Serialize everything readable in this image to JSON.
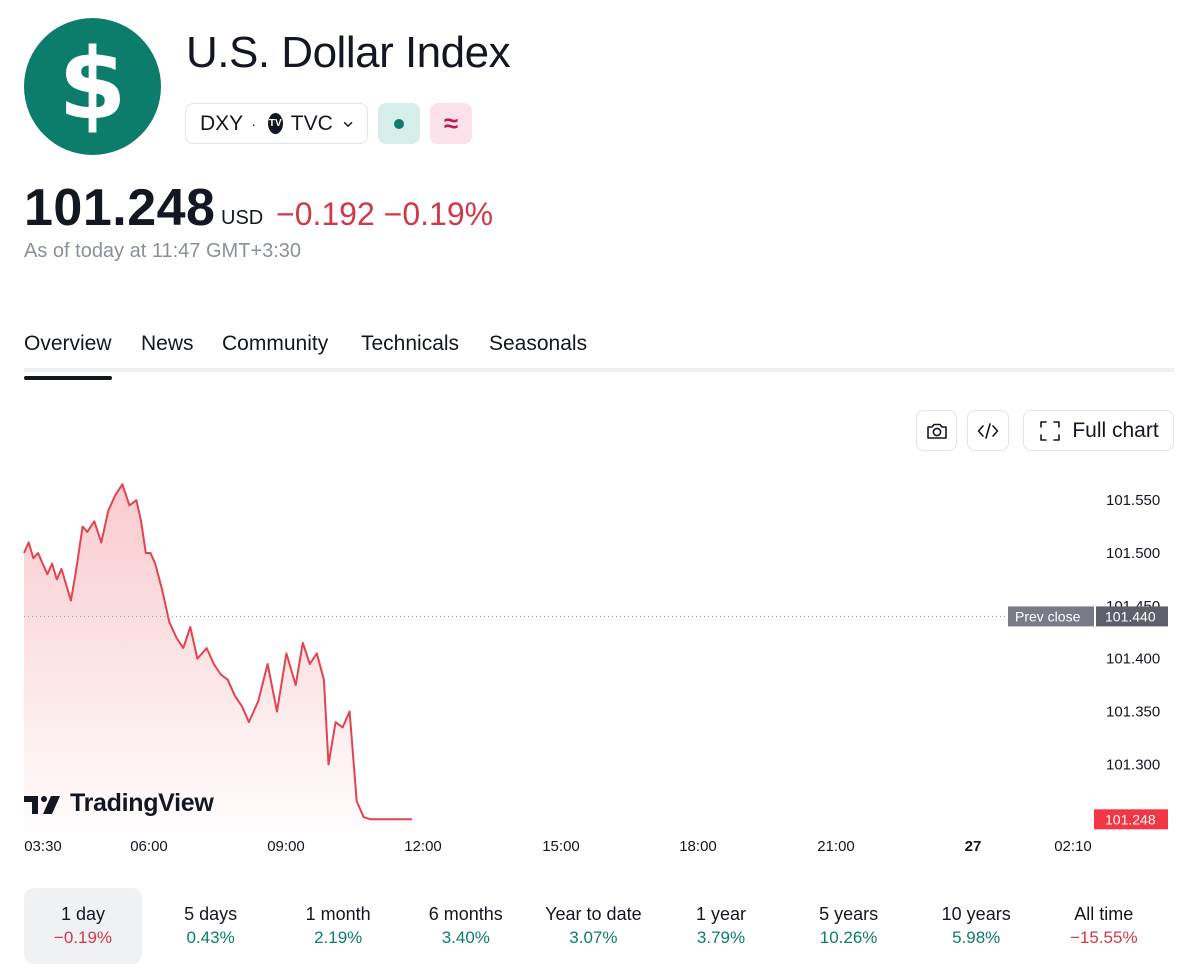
{
  "header": {
    "logo_symbol": "$",
    "title": "U.S. Dollar Index",
    "ticker": "DXY",
    "separator": "·",
    "exchange": "TVC",
    "tv_badge": "TV",
    "delay_symbol": "≈"
  },
  "quote": {
    "price": "101.248",
    "currency": "USD",
    "change": "−0.192 −0.19%",
    "as_of": "As of today at 11:47 GMT+3:30"
  },
  "tabs": [
    {
      "label": "Overview",
      "active": true
    },
    {
      "label": "News"
    },
    {
      "label": "Community"
    },
    {
      "label": "Technicals"
    },
    {
      "label": "Seasonals"
    }
  ],
  "toolbar": {
    "full_chart_label": "Full chart"
  },
  "chart_data": {
    "type": "area",
    "x_tick_labels": [
      "03:30",
      "06:00",
      "09:00",
      "12:00",
      "15:00",
      "18:00",
      "21:00",
      "27",
      "02:10"
    ],
    "y_tick_labels": [
      "101.550",
      "101.500",
      "101.450",
      "101.400",
      "101.350",
      "101.300"
    ],
    "ylim": [
      101.236,
      101.588
    ],
    "x_range_hours": [
      3.5,
      26.1667
    ],
    "prev_close": {
      "label": "Prev close",
      "value": 101.44,
      "display": "101.440"
    },
    "last": {
      "value": 101.248,
      "display": "101.248"
    },
    "series": [
      {
        "x": [
          3.5,
          3.6,
          3.7,
          3.8,
          3.9,
          4.0,
          4.1,
          4.2,
          4.3,
          4.4,
          4.5,
          4.6,
          4.75,
          4.85,
          5.0,
          5.15,
          5.3,
          5.45,
          5.6,
          5.75,
          5.9,
          6.0,
          6.1,
          6.2,
          6.3,
          6.45,
          6.6,
          6.75,
          6.9,
          7.05,
          7.2,
          7.4,
          7.55,
          7.7,
          7.85,
          8.0,
          8.15,
          8.3,
          8.5,
          8.7,
          8.9,
          9.1,
          9.3,
          9.45,
          9.6,
          9.75,
          9.9,
          10.0,
          10.15,
          10.3,
          10.45,
          10.6,
          10.75,
          10.9,
          11.05,
          11.2,
          11.35,
          11.45,
          11.55,
          11.6,
          11.7,
          11.78
        ],
        "y": [
          101.5,
          101.51,
          101.495,
          101.5,
          101.49,
          101.48,
          101.49,
          101.475,
          101.485,
          101.47,
          101.455,
          101.48,
          101.525,
          101.52,
          101.53,
          101.51,
          101.54,
          101.555,
          101.565,
          101.545,
          101.55,
          101.53,
          101.5,
          101.5,
          101.49,
          101.465,
          101.435,
          101.42,
          101.41,
          101.43,
          101.4,
          101.41,
          101.395,
          101.385,
          101.38,
          101.365,
          101.355,
          101.34,
          101.36,
          101.395,
          101.35,
          101.405,
          101.375,
          101.415,
          101.395,
          101.405,
          101.38,
          101.3,
          101.34,
          101.335,
          101.35,
          101.265,
          101.25,
          101.248,
          101.248,
          101.248,
          101.248,
          101.248,
          101.248,
          101.248,
          101.248,
          101.248
        ]
      }
    ],
    "line_color": "#e2434f",
    "fill_color": "#f7b9be"
  },
  "periods": [
    {
      "label": "1 day",
      "value": "−0.19%",
      "trend": "neg",
      "active": true
    },
    {
      "label": "5 days",
      "value": "0.43%",
      "trend": "pos"
    },
    {
      "label": "1 month",
      "value": "2.19%",
      "trend": "pos"
    },
    {
      "label": "6 months",
      "value": "3.40%",
      "trend": "pos"
    },
    {
      "label": "Year to date",
      "value": "3.07%",
      "trend": "pos"
    },
    {
      "label": "1 year",
      "value": "3.79%",
      "trend": "pos"
    },
    {
      "label": "5 years",
      "value": "10.26%",
      "trend": "pos"
    },
    {
      "label": "10 years",
      "value": "5.98%",
      "trend": "pos"
    },
    {
      "label": "All time",
      "value": "−15.55%",
      "trend": "neg"
    }
  ],
  "branding": {
    "watermark": "TradingView"
  },
  "colors": {
    "accent_green": "#0b7d6a",
    "negative_red": "#d1394a"
  }
}
